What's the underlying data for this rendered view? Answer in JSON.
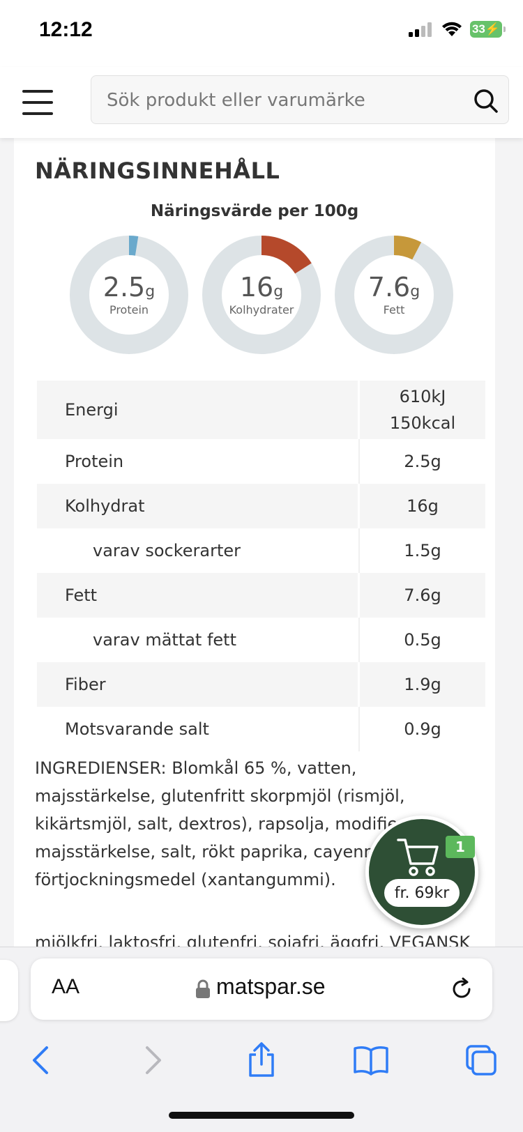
{
  "status_bar": {
    "time": "12:12",
    "battery": "33"
  },
  "header": {
    "search_placeholder": "Sök produkt eller varumärke"
  },
  "nutrition": {
    "title": "NÄRINGSINNEHÅLL",
    "subtitle": "Näringsvärde per 100g",
    "donuts": [
      {
        "value": "2.5",
        "unit": "g",
        "label": "Protein",
        "fraction": 0.025,
        "color": "#6aa9cc"
      },
      {
        "value": "16",
        "unit": "g",
        "label": "Kolhydrater",
        "fraction": 0.16,
        "color": "#b5492b"
      },
      {
        "value": "7.6",
        "unit": "g",
        "label": "Fett",
        "fraction": 0.076,
        "color": "#c6983a"
      }
    ],
    "ring_color": "#dde3e6",
    "rows": [
      {
        "name": "Energi",
        "value_line1": "610kJ",
        "value_line2": "150kcal"
      },
      {
        "name": "Protein",
        "value": "2.5g"
      },
      {
        "name": "Kolhydrat",
        "value": "16g"
      },
      {
        "name": "varav sockerarter",
        "value": "1.5g"
      },
      {
        "name": "Fett",
        "value": "7.6g"
      },
      {
        "name": "varav mättat fett",
        "value": "0.5g"
      },
      {
        "name": "Fiber",
        "value": "1.9g"
      },
      {
        "name": "Motsvarande salt",
        "value": "0.9g"
      }
    ]
  },
  "ingredients": {
    "text": "INGREDIENSER: Blomkål 65 %, vatten, majsstärkelse, glutenfritt skorpmjöl (rismjöl, kikärtsmjöl, salt, dextros), rapsolja, modifierad majsstärkelse, salt, rökt paprika, cayennepeppar, förtjockningsmedel (xantangummi).",
    "cut_line": "mjölkfri, laktosfri, glutenfri, sojafri, äggfri, VEGANSK"
  },
  "cart": {
    "count": "1",
    "price": "fr. 69kr",
    "color": "#2e4f35"
  },
  "browser": {
    "text_size_label": "AA",
    "url": "matspar.se"
  }
}
